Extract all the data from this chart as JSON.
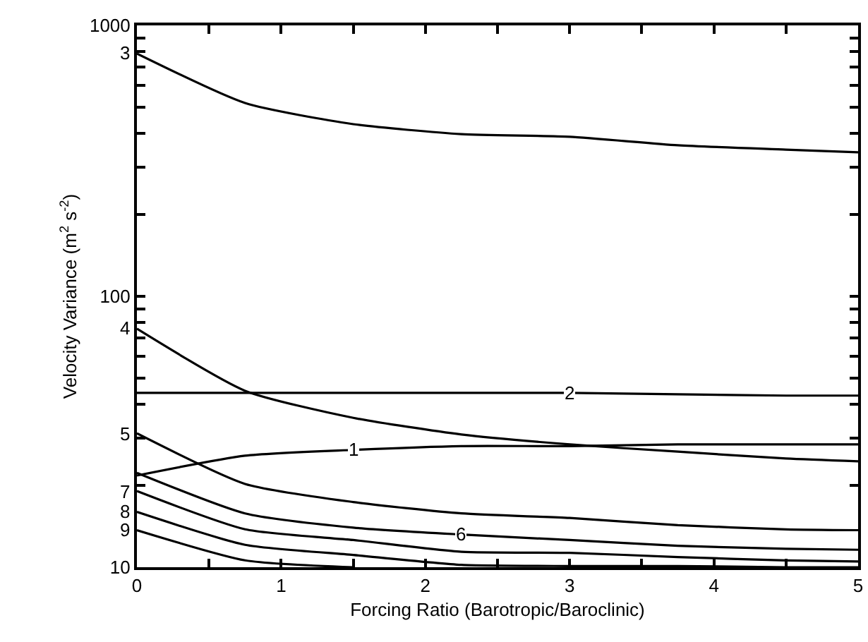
{
  "chart_data": {
    "type": "line",
    "xlabel": "Forcing Ratio (Barotropic/Baroclinic)",
    "ylabel": "Velocity Variance (m$^{2}$ s$^{-2}$)",
    "log": "y",
    "grid": false,
    "legend": false,
    "marker": "none",
    "line_style": "solid",
    "x": [
      0,
      0.75,
      1.5,
      2.25,
      3,
      3.75,
      4.5,
      5
    ],
    "xlim": [
      0,
      5
    ],
    "xticks": [
      0,
      {
        "value": 0.5,
        "label": null
      },
      1,
      {
        "value": 1.5,
        "label": null
      },
      2,
      {
        "value": 2.5,
        "label": null
      },
      3,
      {
        "value": 3.5,
        "label": null
      },
      4,
      {
        "value": 4.5,
        "label": null
      },
      5
    ],
    "ylim": [
      10,
      1000
    ],
    "yticks": [
      10,
      {
        "value": 20,
        "label": null
      },
      {
        "value": 30,
        "label": null
      },
      {
        "value": 40,
        "label": null
      },
      {
        "value": 50,
        "label": null
      },
      {
        "value": 60,
        "label": null
      },
      {
        "value": 70,
        "label": null
      },
      {
        "value": 80,
        "label": null
      },
      {
        "value": 90,
        "label": null
      },
      100,
      {
        "value": 200,
        "label": null
      },
      {
        "value": 300,
        "label": null
      },
      {
        "value": 400,
        "label": null
      },
      {
        "value": 500,
        "label": null
      },
      {
        "value": 600,
        "label": null
      },
      {
        "value": 700,
        "label": null
      },
      {
        "value": 800,
        "label": null
      },
      {
        "value": 900,
        "label": null
      },
      1000
    ],
    "series": [
      {
        "name": "1",
        "color": "#000000",
        "values": [
          21.8,
          25.8,
          27.1,
          28.0,
          28.0,
          28.4,
          28.4,
          28.4
        ]
      },
      {
        "name": "2",
        "color": "#000000",
        "values": [
          44,
          44,
          44,
          44,
          44,
          43.5,
          43,
          43
        ]
      },
      {
        "name": "3",
        "color": "#000000",
        "values": [
          787,
          517,
          432,
          397,
          388,
          361,
          348,
          340
        ]
      },
      {
        "name": "4",
        "color": "#000000",
        "values": [
          75.9,
          44.8,
          35.6,
          30.9,
          28.4,
          26.7,
          25.2,
          24.6
        ]
      },
      {
        "name": "5",
        "color": "#000000",
        "values": [
          31.2,
          20.3,
          17.4,
          15.8,
          15.2,
          14.3,
          13.8,
          13.7
        ]
      },
      {
        "name": "6",
        "color": "#000000",
        "values": [
          22.3,
          15.8,
          14.0,
          13.2,
          12.6,
          12.0,
          11.7,
          11.6
        ]
      },
      {
        "name": "7",
        "color": "#000000",
        "values": [
          19.1,
          13.8,
          12.6,
          11.4,
          11.3,
          10.9,
          10.6,
          10.5
        ]
      },
      {
        "name": "8",
        "color": "#000000",
        "values": [
          16.0,
          12.1,
          11.1,
          10.2,
          10.1,
          10.1,
          10.0,
          10.0
        ]
      },
      {
        "name": "9",
        "color": "#000000",
        "values": [
          13.7,
          10.6,
          10.0,
          null,
          null,
          null,
          null,
          null
        ]
      }
    ]
  }
}
